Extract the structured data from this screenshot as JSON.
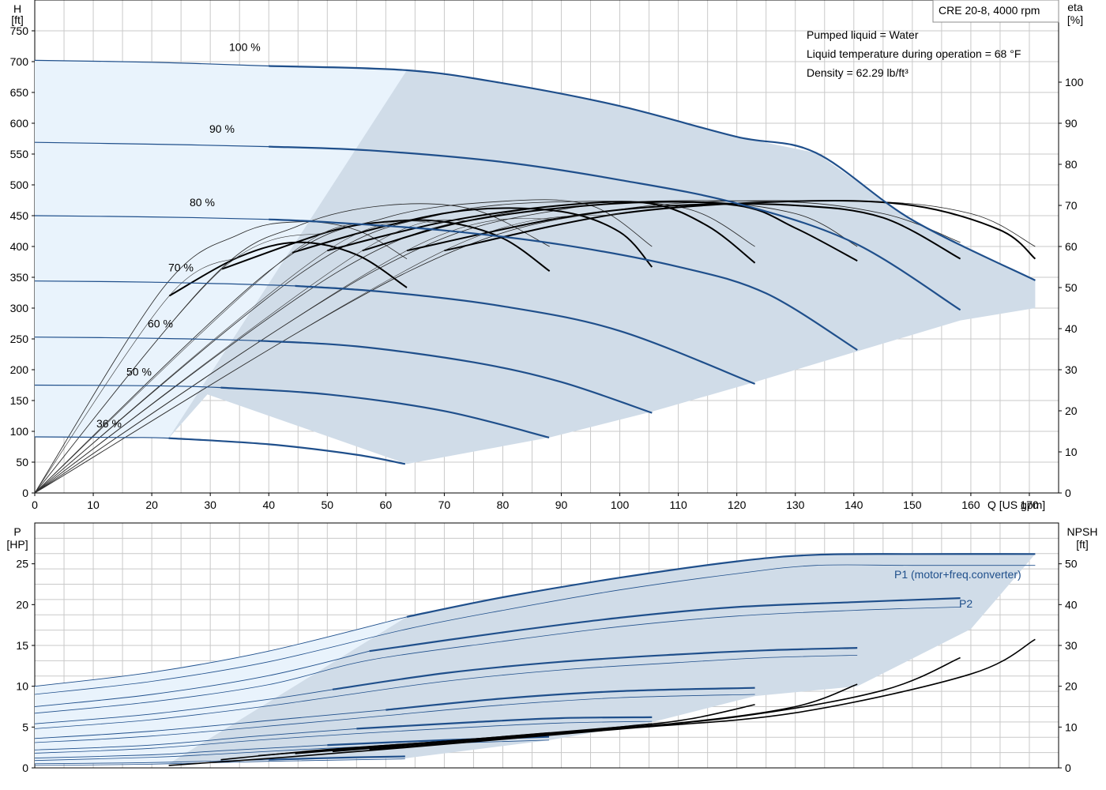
{
  "chart_data": [
    {
      "type": "line",
      "name": "pump-performance",
      "title": "CRE 20-8, 4000 rpm",
      "xlabel": "Q [US gpm]",
      "ylabel_left_name": "H",
      "ylabel_left_unit": "[ft]",
      "ylabel_right_name": "eta",
      "ylabel_right_unit": "[%]",
      "xlim": [
        0,
        175
      ],
      "ylim_left": [
        0,
        800
      ],
      "ylim_right": [
        0,
        120
      ],
      "xticks": [
        0,
        10,
        20,
        30,
        40,
        50,
        60,
        70,
        80,
        90,
        100,
        110,
        120,
        130,
        140,
        150,
        160,
        170
      ],
      "yticks_left": [
        0,
        50,
        100,
        150,
        200,
        250,
        300,
        350,
        400,
        450,
        500,
        550,
        600,
        650,
        700,
        750
      ],
      "yticks_right": [
        0,
        10,
        20,
        30,
        40,
        50,
        60,
        70,
        80,
        90,
        100
      ],
      "grid": true,
      "info_lines": [
        "Pumped liquid = Water",
        "Liquid temperature during operation = 68 °F",
        "Density = 62.29 lb/ft³"
      ],
      "colors": {
        "curve": "#1f4f8b",
        "band_dark": "#d0dce8",
        "band_light": "#e9f3fc",
        "efficiency": "#000000"
      },
      "head_curves": [
        {
          "speed_label": "100 %",
          "x": [
            0,
            20,
            40,
            63.6,
            80,
            100,
            120,
            133.5,
            150,
            171
          ],
          "y": [
            702,
            699,
            693,
            686,
            665,
            628,
            578,
            552,
            443,
            345
          ]
        },
        {
          "speed_label": "90 %",
          "x": [
            0,
            20,
            40,
            57.2,
            80,
            100,
            120,
            140,
            158.2
          ],
          "y": [
            569,
            566,
            562,
            556,
            537,
            508,
            470,
            406,
            297
          ]
        },
        {
          "speed_label": "80 %",
          "x": [
            0,
            20,
            40,
            50.9,
            70,
            90,
            110,
            125,
            140.6
          ],
          "y": [
            450,
            448,
            444,
            439,
            426,
            403,
            367,
            324,
            232
          ]
        },
        {
          "speed_label": "70 %",
          "x": [
            0,
            20,
            44.5,
            60,
            80,
            100,
            123.1
          ],
          "y": [
            344,
            342,
            336,
            326,
            303,
            263,
            177
          ]
        },
        {
          "speed_label": "60 %",
          "x": [
            0,
            20,
            38.2,
            55,
            75,
            90,
            105.5
          ],
          "y": [
            253,
            251,
            247,
            238,
            212,
            180,
            130
          ]
        },
        {
          "speed_label": "50 %",
          "x": [
            0,
            20,
            31.8,
            50,
            70,
            87.9
          ],
          "y": [
            175,
            174,
            171,
            160,
            133,
            90
          ]
        },
        {
          "speed_label": "36 %",
          "x": [
            0,
            15,
            22.9,
            40,
            55,
            63.3
          ],
          "y": [
            91,
            90,
            89,
            79,
            62,
            47
          ]
        }
      ],
      "efficiency_curves": [
        {
          "x": [
            0,
            23,
            35,
            45,
            55,
            63.6
          ],
          "y": [
            0,
            48,
            57.5,
            61,
            58,
            50
          ]
        },
        {
          "x": [
            0,
            32,
            50,
            60,
            70,
            80,
            88
          ],
          "y": [
            0,
            54.5,
            63.5,
            66,
            66,
            62,
            54
          ]
        },
        {
          "x": [
            0,
            44,
            60,
            75,
            90,
            100,
            105.5
          ],
          "y": [
            0,
            58.5,
            65,
            69,
            68.5,
            63.5,
            55
          ]
        },
        {
          "x": [
            0,
            50,
            70,
            90,
            105,
            115,
            123.1
          ],
          "y": [
            0,
            59,
            66,
            70,
            70.5,
            65,
            56
          ]
        },
        {
          "x": [
            0,
            56,
            75,
            100,
            120,
            130,
            140.6
          ],
          "y": [
            0,
            59,
            66.5,
            70.5,
            70,
            64.5,
            56.5
          ]
        },
        {
          "x": [
            0,
            63.6,
            90,
            110,
            130,
            145,
            158.2
          ],
          "y": [
            0,
            59,
            67,
            70,
            70,
            67,
            57
          ]
        },
        {
          "x": [
            0,
            70,
            100,
            130,
            150,
            165,
            171
          ],
          "y": [
            0,
            59,
            68,
            71,
            70,
            64,
            57
          ]
        }
      ],
      "efficiency_curves_p2": [
        {
          "x": [
            0,
            22,
            35,
            45,
            55,
            63.6
          ],
          "y": [
            0,
            50,
            63,
            66,
            64,
            57
          ]
        },
        {
          "x": [
            0,
            30,
            45,
            60,
            75,
            88
          ],
          "y": [
            0,
            52,
            65,
            70,
            69,
            60
          ]
        },
        {
          "x": [
            0,
            40,
            60,
            80,
            95,
            105.5
          ],
          "y": [
            0,
            54,
            67,
            71,
            70,
            60
          ]
        },
        {
          "x": [
            0,
            46,
            70,
            95,
            112,
            123.1
          ],
          "y": [
            0,
            54,
            68,
            71,
            69,
            60
          ]
        },
        {
          "x": [
            0,
            52,
            80,
            110,
            130,
            140.6
          ],
          "y": [
            0,
            54,
            68,
            71,
            68,
            60
          ]
        },
        {
          "x": [
            0,
            58,
            90,
            125,
            145,
            158.2
          ],
          "y": [
            0,
            54,
            69,
            71,
            68,
            61
          ]
        },
        {
          "x": [
            0,
            64,
            100,
            140,
            160,
            171
          ],
          "y": [
            0,
            54,
            69,
            71,
            68,
            60
          ]
        }
      ],
      "band_dark": {
        "upper_x": [
          63.6,
          80,
          100,
          120,
          133.5,
          150,
          171
        ],
        "upper_y": [
          686,
          665,
          628,
          578,
          552,
          443,
          345
        ],
        "lower_x": [
          171,
          158.2,
          140.6,
          123.1,
          105.5,
          88,
          63.6,
          29.5,
          22.9
        ],
        "lower_y": [
          300,
          280,
          230,
          180,
          132,
          90,
          47,
          160,
          89
        ]
      },
      "band_light": {
        "x": [
          0,
          20,
          40,
          63.6,
          58,
          52,
          47,
          38,
          29.5,
          22.9,
          0
        ],
        "y": [
          702,
          699,
          693,
          686,
          600,
          500,
          400,
          300,
          160,
          89,
          91
        ]
      }
    },
    {
      "type": "line",
      "name": "power-npsh",
      "ylabel_left_name": "P",
      "ylabel_left_unit": "[HP]",
      "ylabel_right_name": "NPSH",
      "ylabel_right_unit": "[ft]",
      "xlim": [
        0,
        175
      ],
      "ylim_left": [
        0,
        30
      ],
      "ylim_right": [
        0,
        60
      ],
      "yticks_left": [
        0,
        5,
        10,
        15,
        20,
        25
      ],
      "yticks_right": [
        0,
        10,
        20,
        30,
        40,
        50
      ],
      "grid": true,
      "p1_label": "P1 (motor+freq.converter)",
      "p2_label": "P2",
      "label_color": "#1f4f8b",
      "p1_curves": [
        {
          "x": [
            0,
            20,
            40,
            63.6,
            80,
            100,
            120,
            133.5,
            150,
            171
          ],
          "y": [
            10.0,
            11.7,
            14.3,
            18.5,
            20.9,
            23.3,
            25.3,
            26.1,
            26.2,
            26.2
          ]
        },
        {
          "x": [
            0,
            20,
            40,
            57.2,
            80,
            100,
            120,
            140,
            158.2
          ],
          "y": [
            7.5,
            9.0,
            11.3,
            14.3,
            16.6,
            18.4,
            19.7,
            20.3,
            20.8
          ]
        },
        {
          "x": [
            0,
            20,
            40,
            50.9,
            70,
            90,
            110,
            125,
            140.6
          ],
          "y": [
            5.4,
            6.6,
            8.4,
            9.6,
            11.6,
            13.0,
            13.9,
            14.4,
            14.7
          ]
        },
        {
          "x": [
            0,
            20,
            44.5,
            60,
            80,
            100,
            123.1
          ],
          "y": [
            3.6,
            4.5,
            6.1,
            7.1,
            8.5,
            9.4,
            9.8
          ]
        },
        {
          "x": [
            0,
            20,
            38.2,
            55,
            75,
            90,
            105.5
          ],
          "y": [
            2.2,
            2.8,
            3.9,
            4.8,
            5.6,
            6.1,
            6.2
          ]
        },
        {
          "x": [
            0,
            20,
            31.8,
            50,
            70,
            87.9
          ],
          "y": [
            1.2,
            1.6,
            2.1,
            2.8,
            3.4,
            3.8
          ]
        },
        {
          "x": [
            0,
            15,
            22.9,
            40,
            55,
            63.3
          ],
          "y": [
            0.5,
            0.6,
            0.7,
            1.0,
            1.3,
            1.4
          ]
        }
      ],
      "p2_curves": [
        {
          "x": [
            0,
            20,
            40,
            63.6,
            80,
            100,
            120,
            133.5,
            150,
            171
          ],
          "y": [
            9.0,
            10.6,
            13.0,
            17.0,
            19.3,
            21.8,
            23.8,
            24.8,
            24.8,
            24.8
          ]
        },
        {
          "x": [
            0,
            20,
            40,
            57.2,
            80,
            100,
            120,
            140,
            158.2
          ],
          "y": [
            6.7,
            8.1,
            10.2,
            13.2,
            15.5,
            17.3,
            18.6,
            19.3,
            19.7
          ]
        },
        {
          "x": [
            0,
            20,
            40,
            50.9,
            70,
            90,
            110,
            125,
            140.6
          ],
          "y": [
            4.8,
            5.9,
            7.6,
            8.7,
            10.6,
            12.0,
            12.9,
            13.5,
            13.8
          ]
        },
        {
          "x": [
            0,
            20,
            44.5,
            60,
            80,
            100,
            123.1
          ],
          "y": [
            3.1,
            3.9,
            5.4,
            6.4,
            7.7,
            8.6,
            9.0
          ]
        },
        {
          "x": [
            0,
            20,
            38.2,
            55,
            75,
            90,
            105.5
          ],
          "y": [
            1.8,
            2.4,
            3.4,
            4.2,
            5.0,
            5.5,
            5.7
          ]
        },
        {
          "x": [
            0,
            20,
            31.8,
            50,
            70,
            87.9
          ],
          "y": [
            0.9,
            1.3,
            1.7,
            2.4,
            3.0,
            3.4
          ]
        },
        {
          "x": [
            0,
            15,
            22.9,
            40,
            55,
            63.3
          ],
          "y": [
            0.3,
            0.4,
            0.5,
            0.8,
            1.0,
            1.1
          ]
        }
      ],
      "npsh_curves": [
        {
          "x": [
            22.9,
            40,
            55,
            63.6
          ],
          "y": [
            0.6,
            2.3,
            4.0,
            5.0
          ]
        },
        {
          "x": [
            31.8,
            50,
            70,
            88
          ],
          "y": [
            2.0,
            4.5,
            6.5,
            8.6
          ]
        },
        {
          "x": [
            38.2,
            60,
            85,
            105.5
          ],
          "y": [
            3.0,
            5.5,
            8.0,
            10.8
          ]
        },
        {
          "x": [
            44.5,
            70,
            100,
            112,
            123.1
          ],
          "y": [
            3.5,
            6.5,
            10.0,
            12.0,
            15.5
          ]
        },
        {
          "x": [
            50.9,
            80,
            110,
            130,
            140.6
          ],
          "y": [
            4.0,
            7.5,
            11.0,
            15.0,
            20.5
          ]
        },
        {
          "x": [
            57.2,
            90,
            120,
            145,
            158.2
          ],
          "y": [
            4.5,
            8.5,
            12.5,
            19.0,
            27.0
          ]
        },
        {
          "x": [
            63.6,
            100,
            130,
            160,
            171
          ],
          "y": [
            5.0,
            9.5,
            13.5,
            23.0,
            31.5
          ]
        }
      ],
      "band_dark": {
        "upper_x": [
          63.6,
          80,
          100,
          120,
          133.5,
          150,
          171
        ],
        "upper_y": [
          18.5,
          20.9,
          23.3,
          25.3,
          26.1,
          26.2,
          26.2
        ],
        "lower_x": [
          171,
          160,
          140.6,
          123.1,
          105.5,
          88,
          63.6,
          29.5,
          22.9
        ],
        "lower_y": [
          26.2,
          17,
          10,
          8.8,
          5.6,
          3.4,
          1.2,
          0.9,
          0.5
        ]
      },
      "band_light": {
        "x": [
          0,
          20,
          40,
          63.6,
          56,
          45,
          35,
          29.5,
          22.9,
          0
        ],
        "y": [
          10.0,
          11.7,
          14.3,
          18.5,
          13.0,
          7.5,
          3.5,
          0.9,
          0.5,
          0.5
        ]
      }
    }
  ]
}
